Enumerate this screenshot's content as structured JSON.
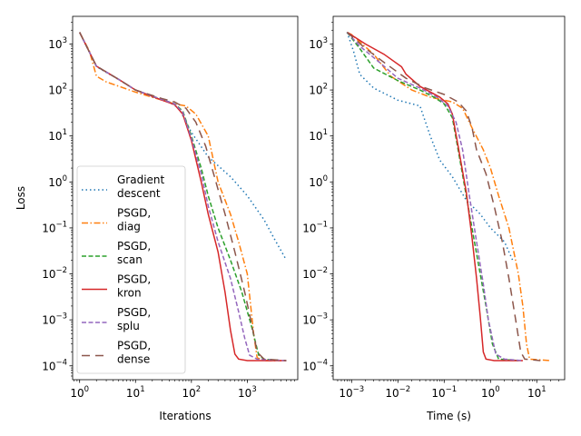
{
  "chart_data": [
    {
      "type": "line",
      "xscale": "log",
      "yscale": "log",
      "xlim": [
        0.75,
        8000
      ],
      "ylim": [
        5e-05,
        4000
      ],
      "xlabel": "Iterations",
      "ylabel": "Loss",
      "xticks": [
        {
          "value": 1,
          "base": "10",
          "exp": "0"
        },
        {
          "value": 10,
          "base": "10",
          "exp": "1"
        },
        {
          "value": 100,
          "base": "10",
          "exp": "2"
        },
        {
          "value": 1000,
          "base": "10",
          "exp": "3"
        }
      ],
      "yticks": [
        {
          "value": 0.0001,
          "base": "10",
          "exp": "−4"
        },
        {
          "value": 0.001,
          "base": "10",
          "exp": "−3"
        },
        {
          "value": 0.01,
          "base": "10",
          "exp": "−2"
        },
        {
          "value": 0.1,
          "base": "10",
          "exp": "−1"
        },
        {
          "value": 1,
          "base": "10",
          "exp": "0"
        },
        {
          "value": 10,
          "base": "10",
          "exp": "1"
        },
        {
          "value": 100,
          "base": "10",
          "exp": "2"
        },
        {
          "value": 1000,
          "base": "10",
          "exp": "3"
        }
      ],
      "legend": {
        "placement": "lower-left"
      },
      "series": [
        {
          "name_line1": "Gradient",
          "name_line2": " descent",
          "color": "#1f77b4",
          "style": "dotted",
          "points": [
            [
              1,
              1800
            ],
            [
              2,
              320
            ],
            [
              5,
              170
            ],
            [
              10,
              100
            ],
            [
              20,
              70
            ],
            [
              40,
              55
            ],
            [
              60,
              40
            ],
            [
              100,
              12
            ],
            [
              200,
              3.5
            ],
            [
              500,
              1.3
            ],
            [
              1000,
              0.5
            ],
            [
              2000,
              0.15
            ],
            [
              3000,
              0.06
            ],
            [
              5000,
              0.02
            ]
          ]
        },
        {
          "name_line1": "PSGD,",
          "name_line2": " diag",
          "color": "#ff7f0e",
          "style": "dashdot",
          "points": [
            [
              1,
              1800
            ],
            [
              1.5,
              700
            ],
            [
              2,
              200
            ],
            [
              3,
              150
            ],
            [
              10,
              90
            ],
            [
              30,
              60
            ],
            [
              50,
              50
            ],
            [
              80,
              45
            ],
            [
              120,
              30
            ],
            [
              200,
              10
            ],
            [
              300,
              1
            ],
            [
              500,
              0.2
            ],
            [
              700,
              0.05
            ],
            [
              1000,
              0.01
            ],
            [
              1300,
              0.0005
            ],
            [
              1500,
              0.00015
            ],
            [
              2000,
              0.00013
            ],
            [
              4000,
              0.00013
            ]
          ]
        },
        {
          "name_line1": "PSGD,",
          "name_line2": " scan",
          "color": "#2ca02c",
          "style": "dashed",
          "points": [
            [
              1,
              1800
            ],
            [
              2,
              330
            ],
            [
              5,
              170
            ],
            [
              10,
              100
            ],
            [
              30,
              62
            ],
            [
              50,
              50
            ],
            [
              70,
              35
            ],
            [
              100,
              10
            ],
            [
              150,
              2
            ],
            [
              200,
              0.5
            ],
            [
              300,
              0.1
            ],
            [
              500,
              0.02
            ],
            [
              800,
              0.004
            ],
            [
              1200,
              0.0007
            ],
            [
              1600,
              0.00017
            ],
            [
              2000,
              0.00014
            ],
            [
              4000,
              0.00013
            ]
          ]
        },
        {
          "name_line1": "PSGD,",
          "name_line2": " kron",
          "color": "#d62728",
          "style": "solid",
          "points": [
            [
              1,
              1800
            ],
            [
              2,
              330
            ],
            [
              5,
              170
            ],
            [
              10,
              100
            ],
            [
              30,
              60
            ],
            [
              50,
              48
            ],
            [
              70,
              30
            ],
            [
              100,
              8
            ],
            [
              150,
              1
            ],
            [
              200,
              0.2
            ],
            [
              300,
              0.03
            ],
            [
              400,
              0.004
            ],
            [
              500,
              0.0006
            ],
            [
              600,
              0.00018
            ],
            [
              700,
              0.00014
            ],
            [
              1000,
              0.00013
            ],
            [
              5000,
              0.00013
            ]
          ]
        },
        {
          "name_line1": "PSGD,",
          "name_line2": " splu",
          "color": "#9467bd",
          "style": "dashed",
          "points": [
            [
              1,
              1800
            ],
            [
              2,
              330
            ],
            [
              5,
              170
            ],
            [
              10,
              100
            ],
            [
              30,
              62
            ],
            [
              50,
              50
            ],
            [
              70,
              33
            ],
            [
              100,
              9
            ],
            [
              150,
              1.5
            ],
            [
              200,
              0.3
            ],
            [
              300,
              0.05
            ],
            [
              500,
              0.008
            ],
            [
              700,
              0.0015
            ],
            [
              900,
              0.0004
            ],
            [
              1100,
              0.00017
            ],
            [
              1500,
              0.00014
            ],
            [
              5000,
              0.00013
            ]
          ]
        },
        {
          "name_line1": "PSGD,",
          "name_line2": " dense",
          "color": "#8c564b",
          "style": "longdash",
          "points": [
            [
              1,
              1800
            ],
            [
              2,
              330
            ],
            [
              5,
              170
            ],
            [
              10,
              100
            ],
            [
              30,
              65
            ],
            [
              50,
              55
            ],
            [
              80,
              40
            ],
            [
              120,
              20
            ],
            [
              180,
              6
            ],
            [
              250,
              1.5
            ],
            [
              400,
              0.2
            ],
            [
              600,
              0.03
            ],
            [
              900,
              0.004
            ],
            [
              1200,
              0.0008
            ],
            [
              1500,
              0.0002
            ],
            [
              2000,
              0.00014
            ],
            [
              5000,
              0.00013
            ]
          ]
        }
      ]
    },
    {
      "type": "line",
      "xscale": "log",
      "yscale": "log",
      "xlim": [
        0.0004,
        40
      ],
      "ylim": [
        5e-05,
        4000
      ],
      "xlabel": "Time (s)",
      "ylabel": "",
      "xticks": [
        {
          "value": 0.001,
          "base": "10",
          "exp": "−3"
        },
        {
          "value": 0.01,
          "base": "10",
          "exp": "−2"
        },
        {
          "value": 0.1,
          "base": "10",
          "exp": "−1"
        },
        {
          "value": 1,
          "base": "10",
          "exp": "0"
        },
        {
          "value": 10,
          "base": "10",
          "exp": "1"
        }
      ],
      "yticks": [
        {
          "value": 0.0001,
          "base": "10",
          "exp": "−4"
        },
        {
          "value": 0.001,
          "base": "10",
          "exp": "−3"
        },
        {
          "value": 0.01,
          "base": "10",
          "exp": "−2"
        },
        {
          "value": 0.1,
          "base": "10",
          "exp": "−1"
        },
        {
          "value": 1,
          "base": "10",
          "exp": "0"
        },
        {
          "value": 10,
          "base": "10",
          "exp": "1"
        },
        {
          "value": 100,
          "base": "10",
          "exp": "2"
        },
        {
          "value": 1000,
          "base": "10",
          "exp": "3"
        }
      ],
      "series": [
        {
          "color": "#1f77b4",
          "style": "dotted",
          "points": [
            [
              0.0008,
              1800
            ],
            [
              0.0011,
              700
            ],
            [
              0.0015,
              220
            ],
            [
              0.003,
              110
            ],
            [
              0.01,
              60
            ],
            [
              0.03,
              45
            ],
            [
              0.05,
              10
            ],
            [
              0.08,
              3
            ],
            [
              0.15,
              1.3
            ],
            [
              0.3,
              0.4
            ],
            [
              0.6,
              0.2
            ],
            [
              1,
              0.1
            ],
            [
              2,
              0.05
            ],
            [
              3,
              0.02
            ]
          ]
        },
        {
          "color": "#ff7f0e",
          "style": "dashdot",
          "points": [
            [
              0.0008,
              1800
            ],
            [
              0.001,
              1600
            ],
            [
              0.003,
              600
            ],
            [
              0.007,
              200
            ],
            [
              0.02,
              100
            ],
            [
              0.05,
              70
            ],
            [
              0.15,
              55
            ],
            [
              0.25,
              40
            ],
            [
              0.4,
              15
            ],
            [
              0.7,
              5
            ],
            [
              1,
              2
            ],
            [
              1.5,
              0.5
            ],
            [
              2.5,
              0.1
            ],
            [
              4,
              0.01
            ],
            [
              5,
              0.002
            ],
            [
              6,
              0.0003
            ],
            [
              7,
              0.00014
            ],
            [
              20,
              0.00013
            ]
          ]
        },
        {
          "color": "#2ca02c",
          "style": "dashed",
          "points": [
            [
              0.0008,
              1800
            ],
            [
              0.0015,
              800
            ],
            [
              0.003,
              300
            ],
            [
              0.01,
              160
            ],
            [
              0.03,
              100
            ],
            [
              0.06,
              70
            ],
            [
              0.1,
              50
            ],
            [
              0.15,
              25
            ],
            [
              0.2,
              5
            ],
            [
              0.3,
              0.5
            ],
            [
              0.45,
              0.05
            ],
            [
              0.6,
              0.01
            ],
            [
              0.8,
              0.002
            ],
            [
              1.1,
              0.0003
            ],
            [
              1.5,
              0.00014
            ],
            [
              4,
              0.00013
            ]
          ]
        },
        {
          "color": "#d62728",
          "style": "solid",
          "points": [
            [
              0.0008,
              1800
            ],
            [
              0.002,
              1000
            ],
            [
              0.005,
              600
            ],
            [
              0.012,
              320
            ],
            [
              0.015,
              220
            ],
            [
              0.03,
              120
            ],
            [
              0.08,
              70
            ],
            [
              0.12,
              50
            ],
            [
              0.15,
              30
            ],
            [
              0.2,
              6
            ],
            [
              0.3,
              0.6
            ],
            [
              0.4,
              0.06
            ],
            [
              0.5,
              0.008
            ],
            [
              0.6,
              0.0012
            ],
            [
              0.7,
              0.0002
            ],
            [
              0.8,
              0.00014
            ],
            [
              1.2,
              0.00013
            ],
            [
              5,
              0.00013
            ]
          ]
        },
        {
          "color": "#9467bd",
          "style": "dashed",
          "points": [
            [
              0.0008,
              1800
            ],
            [
              0.0015,
              900
            ],
            [
              0.004,
              400
            ],
            [
              0.01,
              180
            ],
            [
              0.03,
              110
            ],
            [
              0.07,
              70
            ],
            [
              0.12,
              45
            ],
            [
              0.18,
              20
            ],
            [
              0.25,
              5
            ],
            [
              0.35,
              0.5
            ],
            [
              0.5,
              0.05
            ],
            [
              0.7,
              0.006
            ],
            [
              0.9,
              0.001
            ],
            [
              1.3,
              0.00018
            ],
            [
              2,
              0.00014
            ],
            [
              5,
              0.00013
            ]
          ]
        },
        {
          "color": "#8c564b",
          "style": "longdash",
          "points": [
            [
              0.0008,
              1800
            ],
            [
              0.002,
              800
            ],
            [
              0.005,
              400
            ],
            [
              0.015,
              180
            ],
            [
              0.04,
              110
            ],
            [
              0.1,
              80
            ],
            [
              0.2,
              55
            ],
            [
              0.3,
              35
            ],
            [
              0.4,
              15
            ],
            [
              0.5,
              5
            ],
            [
              0.8,
              1.5
            ],
            [
              1.2,
              0.3
            ],
            [
              1.8,
              0.05
            ],
            [
              2.5,
              0.008
            ],
            [
              3.5,
              0.001
            ],
            [
              4.5,
              0.0002
            ],
            [
              5.5,
              0.00014
            ],
            [
              12,
              0.00013
            ]
          ]
        }
      ]
    }
  ]
}
